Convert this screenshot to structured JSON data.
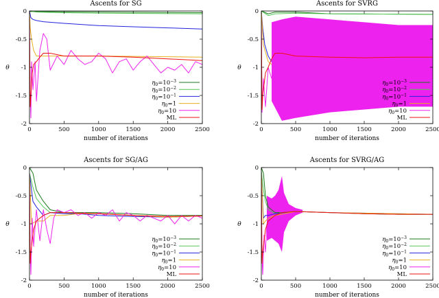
{
  "chart_data": [
    {
      "type": "line",
      "title": "Ascents for SG",
      "xlabel": "number of iterations",
      "ylabel": "θ",
      "xlim": [
        0,
        2500
      ],
      "ylim": [
        -2,
        0
      ],
      "xticks": [
        "0",
        "500",
        "1000",
        "1500",
        "2000",
        "2500"
      ],
      "yticks": [
        "0",
        "-0.5",
        "-1",
        "-1.5",
        "-2"
      ],
      "legend_position": "bottom-right",
      "series": [
        {
          "name": "η0=10^-3",
          "color": "#1a7a1a",
          "x": [
            0,
            2500
          ],
          "y": [
            -0.01,
            -0.03
          ]
        },
        {
          "name": "η0=10^-2",
          "color": "#55c855",
          "x": [
            0,
            100,
            500,
            1000,
            2500
          ],
          "y": [
            0,
            -0.02,
            -0.03,
            -0.04,
            -0.05
          ]
        },
        {
          "name": "η0=10^-1",
          "color": "#2222dd",
          "x": [
            0,
            20,
            50,
            100,
            200,
            500,
            1000,
            1500,
            2000,
            2500
          ],
          "y": [
            0,
            -0.12,
            -0.15,
            -0.17,
            -0.19,
            -0.22,
            -0.26,
            -0.28,
            -0.3,
            -0.32
          ]
        },
        {
          "name": "η0=1",
          "color": "#e8b020",
          "x": [
            0,
            10,
            30,
            60,
            100,
            200,
            500,
            1000,
            2500
          ],
          "y": [
            0,
            -0.3,
            -0.5,
            -0.7,
            -0.8,
            -0.8,
            -0.8,
            -0.8,
            -0.82
          ]
        },
        {
          "name": "η0=10",
          "color": "#ee22ee",
          "x": [
            0,
            10,
            20,
            30,
            50,
            80,
            100,
            150,
            200,
            250,
            300,
            400,
            500,
            600,
            700,
            800,
            900,
            1000,
            1100,
            1200,
            1300,
            1400,
            1500,
            1600,
            1700,
            1800,
            1900,
            2000,
            2100,
            2200,
            2300,
            2400,
            2500
          ],
          "y": [
            -0.2,
            -1.5,
            -1.9,
            -0.9,
            -1.4,
            -0.9,
            -1.6,
            -0.7,
            -0.4,
            -0.5,
            -1.05,
            -0.8,
            -0.95,
            -0.7,
            -0.85,
            -0.95,
            -0.9,
            -0.75,
            -0.85,
            -1.1,
            -0.9,
            -0.85,
            -1.05,
            -0.9,
            -0.8,
            -0.95,
            -1.1,
            -1.0,
            -1.05,
            -0.95,
            -1.1,
            -0.9,
            -0.95
          ]
        },
        {
          "name": "ML",
          "color": "#ee1111",
          "x": [
            0,
            10,
            20,
            30,
            40,
            60,
            100,
            150,
            200,
            300,
            500,
            1000,
            1500,
            2000,
            2500
          ],
          "y": [
            -0.1,
            -1.7,
            -1.5,
            -1.3,
            -1.1,
            -0.95,
            -0.9,
            -0.82,
            -0.75,
            -0.75,
            -0.8,
            -0.8,
            -0.82,
            -0.85,
            -0.88
          ]
        }
      ]
    },
    {
      "type": "line",
      "title": "Ascents for SVRG",
      "xlabel": "number of iterations",
      "ylabel": "θ",
      "xlim": [
        0,
        2500
      ],
      "ylim": [
        -2,
        0
      ],
      "xticks": [
        "0",
        "500",
        "1000",
        "1500",
        "2000",
        "2500"
      ],
      "yticks": [
        "0",
        "-0.5",
        "-1",
        "-1.5",
        "-2"
      ],
      "legend_position": "bottom-right",
      "band": {
        "color": "#ee22ee",
        "x": [
          150,
          300,
          500,
          1000,
          1500,
          2000,
          2500
        ],
        "upper": [
          -0.2,
          -0.15,
          -0.1,
          -0.15,
          -0.2,
          -0.25,
          -0.25
        ],
        "lower": [
          -1.6,
          -1.95,
          -1.9,
          -1.8,
          -1.75,
          -1.7,
          -1.7
        ]
      },
      "series": [
        {
          "name": "η0=10^-3",
          "color": "#1a7a1a",
          "x": [
            0,
            100,
            200,
            500,
            1000,
            2500
          ],
          "y": [
            0,
            -0.05,
            -0.02,
            -0.02,
            -0.05,
            -0.06
          ]
        },
        {
          "name": "η0=10^-2",
          "color": "#55c855",
          "x": [
            0,
            100,
            200,
            500,
            1000,
            2500
          ],
          "y": [
            0,
            -0.08,
            -0.05,
            -0.04,
            -0.05,
            -0.06
          ]
        },
        {
          "name": "η0=10^-1",
          "color": "#2222dd",
          "x": [
            0,
            20,
            50,
            100,
            150
          ],
          "y": [
            0,
            -0.3,
            -0.6,
            -0.8,
            -0.9
          ]
        },
        {
          "name": "η0=1",
          "color": "#e8b020",
          "x": [
            0,
            30,
            100,
            150
          ],
          "y": [
            0,
            -0.6,
            -0.9,
            -0.95
          ]
        },
        {
          "name": "η0=10",
          "color": "#ee22ee",
          "x": [
            0,
            10,
            30,
            60,
            100,
            150
          ],
          "y": [
            -0.2,
            -1.8,
            -1.2,
            -1.7,
            -1.0,
            -1.2
          ]
        },
        {
          "name": "ML",
          "color": "#ee1111",
          "x": [
            0,
            10,
            20,
            40,
            60,
            100,
            150,
            200,
            300,
            500,
            1000,
            1500,
            2000,
            2500
          ],
          "y": [
            -0.1,
            -1.75,
            -1.5,
            -1.3,
            -1.1,
            -1.0,
            -0.85,
            -0.75,
            -0.75,
            -0.8,
            -0.82,
            -0.83,
            -0.82,
            -0.82
          ]
        }
      ]
    },
    {
      "type": "line",
      "title": "Ascents for SG/AG",
      "xlabel": "number of iterations",
      "ylabel": "θ",
      "xlim": [
        0,
        2500
      ],
      "ylim": [
        -2,
        0
      ],
      "xticks": [
        "0",
        "500",
        "1000",
        "1500",
        "2000",
        "2500"
      ],
      "yticks": [
        "0",
        "-0.5",
        "-1",
        "-1.5",
        "-2"
      ],
      "legend_position": "bottom-right",
      "series": [
        {
          "name": "η0=10^-3",
          "color": "#1a7a1a",
          "x": [
            0,
            50,
            100,
            200,
            300,
            500,
            700,
            1000,
            1500,
            2000,
            2500
          ],
          "y": [
            0,
            -0.1,
            -0.4,
            -0.6,
            -0.75,
            -0.8,
            -0.8,
            -0.8,
            -0.82,
            -0.85,
            -0.85
          ]
        },
        {
          "name": "η0=10^-2",
          "color": "#55c855",
          "x": [
            0,
            50,
            100,
            200,
            300,
            500,
            700,
            1000,
            1500,
            2000,
            2500
          ],
          "y": [
            -0.1,
            -0.35,
            -0.55,
            -0.7,
            -0.8,
            -0.8,
            -0.82,
            -0.82,
            -0.85,
            -0.88,
            -0.86
          ]
        },
        {
          "name": "η0=10^-1",
          "color": "#2222dd",
          "x": [
            0,
            50,
            100,
            200,
            300,
            500,
            700,
            1000,
            1500,
            2000,
            2500
          ],
          "y": [
            -0.1,
            -0.6,
            -0.7,
            -0.85,
            -0.8,
            -0.82,
            -0.82,
            -0.85,
            -0.87,
            -0.88,
            -0.86
          ]
        },
        {
          "name": "η0=1",
          "color": "#e8b020",
          "x": [
            0,
            30,
            100,
            200,
            300,
            500,
            700,
            1000,
            1500,
            2000,
            2500
          ],
          "y": [
            -0.1,
            -1.0,
            -0.95,
            -0.95,
            -0.85,
            -0.85,
            -0.82,
            -0.82,
            -0.85,
            -0.88,
            -0.86
          ]
        },
        {
          "name": "η0=10",
          "color": "#ee22ee",
          "x": [
            0,
            10,
            20,
            40,
            60,
            100,
            150,
            200,
            250,
            300,
            350,
            400,
            500,
            600,
            700,
            800,
            900,
            1000,
            1100,
            1200,
            1300,
            1400,
            1500,
            1600,
            1700,
            1800,
            1900,
            2000,
            2100,
            2200,
            2300,
            2400,
            2500
          ],
          "y": [
            -0.3,
            -1.5,
            -1.9,
            -0.9,
            -1.4,
            -0.75,
            -1.3,
            -0.75,
            -1.1,
            -1.35,
            -0.9,
            -0.75,
            -0.8,
            -0.75,
            -0.85,
            -0.8,
            -0.9,
            -0.8,
            -0.85,
            -0.75,
            -0.95,
            -0.8,
            -0.85,
            -0.95,
            -0.85,
            -0.9,
            -0.95,
            -0.85,
            -1.0,
            -0.85,
            -0.95,
            -0.85,
            -0.9
          ]
        },
        {
          "name": "ML",
          "color": "#ee1111",
          "x": [
            0,
            10,
            20,
            40,
            60,
            100,
            200,
            300,
            500,
            1000,
            1500,
            2000,
            2500
          ],
          "y": [
            -0.2,
            -1.7,
            -1.5,
            -1.3,
            -1.1,
            -0.95,
            -0.85,
            -0.8,
            -0.8,
            -0.82,
            -0.85,
            -0.87,
            -0.86
          ]
        }
      ]
    },
    {
      "type": "line",
      "title": "Ascents for SVRG/AG",
      "xlabel": "number of iterations",
      "ylabel": "θ",
      "xlim": [
        0,
        2500
      ],
      "ylim": [
        -2,
        0
      ],
      "xticks": [
        "0",
        "500",
        "1000",
        "1500",
        "2000",
        "2500"
      ],
      "yticks": [
        "0",
        "-0.5",
        "-1",
        "-1.5",
        "-2"
      ],
      "legend_position": "bottom-right",
      "band": {
        "color": "#ee22ee",
        "x": [
          80,
          150,
          200,
          250,
          300,
          330,
          400,
          500,
          600
        ],
        "upper": [
          -0.5,
          -0.55,
          -0.5,
          -0.4,
          -0.15,
          -0.45,
          -0.65,
          -0.72,
          -0.75
        ],
        "lower": [
          -1.3,
          -1.25,
          -1.3,
          -1.35,
          -1.5,
          -1.15,
          -0.95,
          -0.85,
          -0.8
        ]
      },
      "series": [
        {
          "name": "η0=10^-3",
          "color": "#1a7a1a",
          "x": [
            0,
            30,
            60,
            100,
            200,
            300,
            500,
            1000,
            1500,
            2000,
            2500
          ],
          "y": [
            0,
            -0.1,
            -0.5,
            -0.7,
            -0.8,
            -0.8,
            -0.78,
            -0.8,
            -0.82,
            -0.83,
            -0.83
          ]
        },
        {
          "name": "η0=10^-2",
          "color": "#55c855",
          "x": [
            0,
            30,
            60,
            100,
            200,
            300,
            500,
            1000,
            1500,
            2000,
            2500
          ],
          "y": [
            -0.05,
            -0.4,
            -0.6,
            -0.75,
            -0.82,
            -0.8,
            -0.78,
            -0.8,
            -0.82,
            -0.83,
            -0.83
          ]
        },
        {
          "name": "η0=10^-1",
          "color": "#2222dd",
          "x": [
            0,
            30,
            60,
            100,
            200,
            500,
            1000,
            2500
          ],
          "y": [
            -0.1,
            -0.9,
            -0.85,
            -0.85,
            -0.82,
            -0.78,
            -0.8,
            -0.83
          ]
        },
        {
          "name": "η0=1",
          "color": "#e8b020",
          "x": [
            0,
            30,
            60,
            100,
            200,
            500,
            1000,
            2500
          ],
          "y": [
            -0.1,
            -1.0,
            -0.95,
            -0.9,
            -0.85,
            -0.78,
            -0.8,
            -0.83
          ]
        },
        {
          "name": "η0=10",
          "color": "#ee22ee",
          "x": [
            0,
            10,
            20,
            40,
            60,
            80
          ],
          "y": [
            -0.3,
            -1.6,
            -1.9,
            -1.2,
            -1.5,
            -1.0
          ]
        },
        {
          "name": "ML",
          "color": "#ee1111",
          "x": [
            0,
            10,
            20,
            40,
            60,
            100,
            200,
            300,
            500,
            1000,
            1500,
            2000,
            2500
          ],
          "y": [
            -0.2,
            -1.7,
            -1.5,
            -1.3,
            -1.1,
            -0.95,
            -0.85,
            -0.8,
            -0.78,
            -0.8,
            -0.82,
            -0.83,
            -0.83
          ]
        }
      ]
    }
  ]
}
